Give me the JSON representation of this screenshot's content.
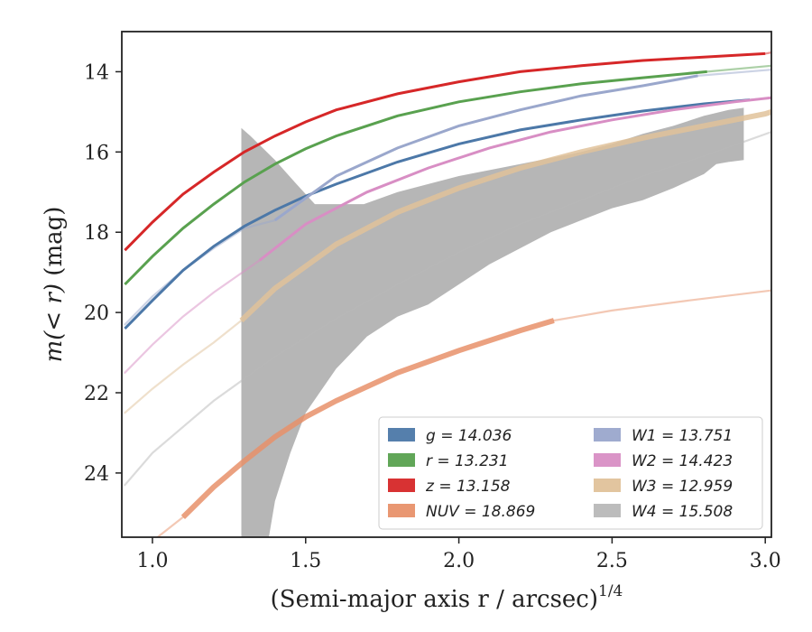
{
  "chart_data": {
    "type": "line",
    "xlabel": "(Semi-major axis r / arcsec)",
    "xlabel_exponent": "1/4",
    "ylabel_prefix": "m(< r)",
    "ylabel_unit": " (mag)",
    "xlim": [
      0.9,
      3.02
    ],
    "ylim": [
      25.6,
      13.0
    ],
    "y_inverted": true,
    "xticks": [
      1.0,
      1.5,
      2.0,
      2.5,
      3.0
    ],
    "xtick_labels": [
      "1.0",
      "1.5",
      "2.0",
      "2.5",
      "3.0"
    ],
    "yticks": [
      14,
      16,
      18,
      20,
      22,
      24
    ],
    "ytick_labels": [
      "14",
      "16",
      "18",
      "20",
      "22",
      "24"
    ],
    "grid": false,
    "legend_position": "lower-right",
    "series": [
      {
        "name": "g = 14.036",
        "color": "#4c78a8",
        "solid": [
          [
            0.91,
            20.4
          ],
          [
            1.0,
            19.7
          ],
          [
            1.1,
            18.95
          ],
          [
            1.2,
            18.35
          ],
          [
            1.3,
            17.85
          ],
          [
            1.4,
            17.45
          ],
          [
            1.5,
            17.1
          ],
          [
            1.6,
            16.8
          ],
          [
            1.8,
            16.25
          ],
          [
            2.0,
            15.8
          ],
          [
            2.2,
            15.45
          ],
          [
            2.4,
            15.2
          ],
          [
            2.6,
            14.98
          ],
          [
            2.8,
            14.8
          ],
          [
            2.95,
            14.7
          ]
        ],
        "faded": [
          [
            2.95,
            14.7
          ],
          [
            3.02,
            14.65
          ]
        ]
      },
      {
        "name": "r = 13.231",
        "color": "#59a14f",
        "solid": [
          [
            0.91,
            19.3
          ],
          [
            1.0,
            18.6
          ],
          [
            1.1,
            17.9
          ],
          [
            1.2,
            17.3
          ],
          [
            1.3,
            16.75
          ],
          [
            1.4,
            16.3
          ],
          [
            1.5,
            15.92
          ],
          [
            1.6,
            15.6
          ],
          [
            1.8,
            15.1
          ],
          [
            2.0,
            14.75
          ],
          [
            2.2,
            14.5
          ],
          [
            2.4,
            14.3
          ],
          [
            2.6,
            14.15
          ],
          [
            2.81,
            14.0
          ]
        ],
        "faded": [
          [
            2.81,
            14.0
          ],
          [
            3.02,
            13.85
          ]
        ]
      },
      {
        "name": "z = 13.158",
        "color": "#d62728",
        "solid": [
          [
            0.91,
            18.45
          ],
          [
            1.0,
            17.75
          ],
          [
            1.1,
            17.05
          ],
          [
            1.2,
            16.5
          ],
          [
            1.3,
            16.0
          ],
          [
            1.4,
            15.6
          ],
          [
            1.5,
            15.25
          ],
          [
            1.6,
            14.95
          ],
          [
            1.8,
            14.55
          ],
          [
            2.0,
            14.25
          ],
          [
            2.2,
            14.0
          ],
          [
            2.4,
            13.85
          ],
          [
            2.6,
            13.72
          ],
          [
            3.0,
            13.55
          ]
        ],
        "faded": [
          [
            3.0,
            13.55
          ],
          [
            3.02,
            13.52
          ]
        ]
      },
      {
        "name": "NUV = 18.869",
        "color": "#e8916a",
        "band": true,
        "solid": [
          [
            1.1,
            25.1
          ],
          [
            1.2,
            24.35
          ],
          [
            1.3,
            23.7
          ],
          [
            1.4,
            23.1
          ],
          [
            1.5,
            22.6
          ],
          [
            1.6,
            22.2
          ],
          [
            1.8,
            21.5
          ],
          [
            2.0,
            20.95
          ],
          [
            2.2,
            20.45
          ],
          [
            2.31,
            20.2
          ]
        ],
        "faded": [
          [
            0.94,
            26.0
          ],
          [
            1.0,
            25.7
          ],
          [
            1.1,
            25.1
          ]
        ],
        "faded2": [
          [
            2.31,
            20.2
          ],
          [
            2.5,
            19.95
          ],
          [
            2.75,
            19.7
          ],
          [
            3.02,
            19.45
          ]
        ]
      },
      {
        "name": "W1 = 13.751",
        "color": "#9aa7cc",
        "solid": [
          [
            1.4,
            17.7
          ],
          [
            1.6,
            16.6
          ],
          [
            1.8,
            15.9
          ],
          [
            2.0,
            15.35
          ],
          [
            2.2,
            14.95
          ],
          [
            2.4,
            14.6
          ],
          [
            2.6,
            14.35
          ],
          [
            2.78,
            14.1
          ]
        ],
        "faded": [
          [
            0.91,
            20.3
          ],
          [
            1.0,
            19.6
          ],
          [
            1.1,
            18.95
          ],
          [
            1.2,
            18.4
          ],
          [
            1.3,
            17.9
          ],
          [
            1.4,
            17.7
          ]
        ],
        "faded2": [
          [
            2.78,
            14.1
          ],
          [
            3.02,
            13.95
          ]
        ]
      },
      {
        "name": "W2 = 14.423",
        "color": "#d88ec4",
        "solid": [
          [
            1.35,
            18.7
          ],
          [
            1.5,
            17.8
          ],
          [
            1.7,
            17.0
          ],
          [
            1.9,
            16.4
          ],
          [
            2.1,
            15.9
          ],
          [
            2.3,
            15.5
          ],
          [
            2.5,
            15.2
          ],
          [
            2.7,
            14.95
          ],
          [
            2.9,
            14.75
          ],
          [
            3.02,
            14.65
          ]
        ],
        "faded": [
          [
            0.91,
            21.5
          ],
          [
            1.0,
            20.8
          ],
          [
            1.1,
            20.1
          ],
          [
            1.2,
            19.5
          ],
          [
            1.35,
            18.7
          ]
        ]
      },
      {
        "name": "W3 = 12.959",
        "color": "#e0c29a",
        "band": true,
        "solid": [
          [
            1.29,
            20.2
          ],
          [
            1.4,
            19.4
          ],
          [
            1.6,
            18.3
          ],
          [
            1.8,
            17.5
          ],
          [
            2.0,
            16.9
          ],
          [
            2.2,
            16.4
          ],
          [
            2.4,
            16.0
          ],
          [
            2.6,
            15.65
          ],
          [
            2.8,
            15.35
          ],
          [
            3.0,
            15.05
          ],
          [
            3.02,
            15.0
          ]
        ],
        "faded": [
          [
            0.91,
            22.5
          ],
          [
            1.0,
            21.9
          ],
          [
            1.1,
            21.3
          ],
          [
            1.2,
            20.75
          ],
          [
            1.29,
            20.2
          ]
        ]
      },
      {
        "name": "W4 = 15.508",
        "color": "#b8b8b8",
        "solid": [],
        "faded": [
          [
            0.91,
            24.3
          ],
          [
            1.0,
            23.5
          ],
          [
            1.1,
            22.85
          ],
          [
            1.2,
            22.2
          ],
          [
            1.4,
            21.1
          ],
          [
            1.6,
            20.15
          ],
          [
            1.8,
            19.3
          ],
          [
            2.0,
            18.5
          ],
          [
            2.2,
            17.8
          ],
          [
            2.4,
            17.2
          ],
          [
            2.6,
            16.6
          ],
          [
            2.8,
            16.1
          ],
          [
            3.02,
            15.5
          ]
        ],
        "area_upper": [
          [
            1.29,
            15.4
          ],
          [
            1.32,
            15.6
          ],
          [
            1.4,
            16.2
          ],
          [
            1.47,
            16.8
          ],
          [
            1.53,
            17.3
          ],
          [
            1.69,
            17.3
          ],
          [
            1.8,
            17.0
          ],
          [
            1.9,
            16.8
          ],
          [
            2.0,
            16.6
          ],
          [
            2.2,
            16.3
          ],
          [
            2.4,
            16.0
          ],
          [
            2.5,
            15.8
          ],
          [
            2.6,
            15.55
          ],
          [
            2.7,
            15.35
          ],
          [
            2.8,
            15.1
          ],
          [
            2.88,
            14.95
          ],
          [
            2.93,
            14.9
          ],
          [
            2.93,
            14.95
          ]
        ],
        "area_lower": [
          [
            2.93,
            16.2
          ],
          [
            2.88,
            16.25
          ],
          [
            2.84,
            16.3
          ],
          [
            2.8,
            16.55
          ],
          [
            2.7,
            16.9
          ],
          [
            2.6,
            17.2
          ],
          [
            2.5,
            17.4
          ],
          [
            2.4,
            17.7
          ],
          [
            2.3,
            18.0
          ],
          [
            2.2,
            18.4
          ],
          [
            2.1,
            18.8
          ],
          [
            2.0,
            19.3
          ],
          [
            1.9,
            19.8
          ],
          [
            1.8,
            20.1
          ],
          [
            1.7,
            20.6
          ],
          [
            1.6,
            21.4
          ],
          [
            1.5,
            22.5
          ],
          [
            1.45,
            23.5
          ],
          [
            1.4,
            24.7
          ],
          [
            1.38,
            25.6
          ],
          [
            1.29,
            25.6
          ]
        ]
      }
    ]
  }
}
